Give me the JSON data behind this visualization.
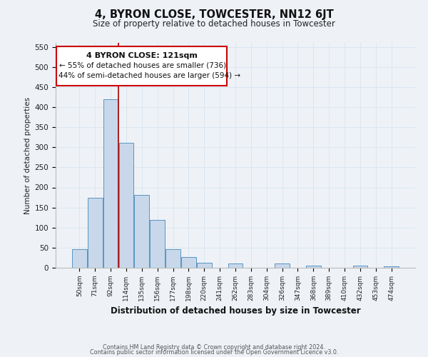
{
  "title": "4, BYRON CLOSE, TOWCESTER, NN12 6JT",
  "subtitle": "Size of property relative to detached houses in Towcester",
  "xlabel": "Distribution of detached houses by size in Towcester",
  "ylabel": "Number of detached properties",
  "bar_labels": [
    "50sqm",
    "71sqm",
    "92sqm",
    "114sqm",
    "135sqm",
    "156sqm",
    "177sqm",
    "198sqm",
    "220sqm",
    "241sqm",
    "262sqm",
    "283sqm",
    "304sqm",
    "326sqm",
    "347sqm",
    "368sqm",
    "389sqm",
    "410sqm",
    "432sqm",
    "453sqm",
    "474sqm"
  ],
  "bar_values": [
    47,
    175,
    420,
    312,
    182,
    120,
    47,
    27,
    13,
    0,
    10,
    0,
    0,
    10,
    0,
    5,
    0,
    0,
    5,
    0,
    3
  ],
  "bar_color": "#c8d8ea",
  "bar_edge_color": "#4488bb",
  "grid_color": "#d8e4f0",
  "vline_x": 3.0,
  "vline_color": "#aa0000",
  "annotation_title": "4 BYRON CLOSE: 121sqm",
  "annotation_line1": "← 55% of detached houses are smaller (736)",
  "annotation_line2": "44% of semi-detached houses are larger (594) →",
  "annotation_box_color": "#cc0000",
  "ylim": [
    0,
    560
  ],
  "yticks": [
    0,
    50,
    100,
    150,
    200,
    250,
    300,
    350,
    400,
    450,
    500,
    550
  ],
  "footer1": "Contains HM Land Registry data © Crown copyright and database right 2024.",
  "footer2": "Contains public sector information licensed under the Open Government Licence v3.0.",
  "bg_color": "#eef2f7"
}
